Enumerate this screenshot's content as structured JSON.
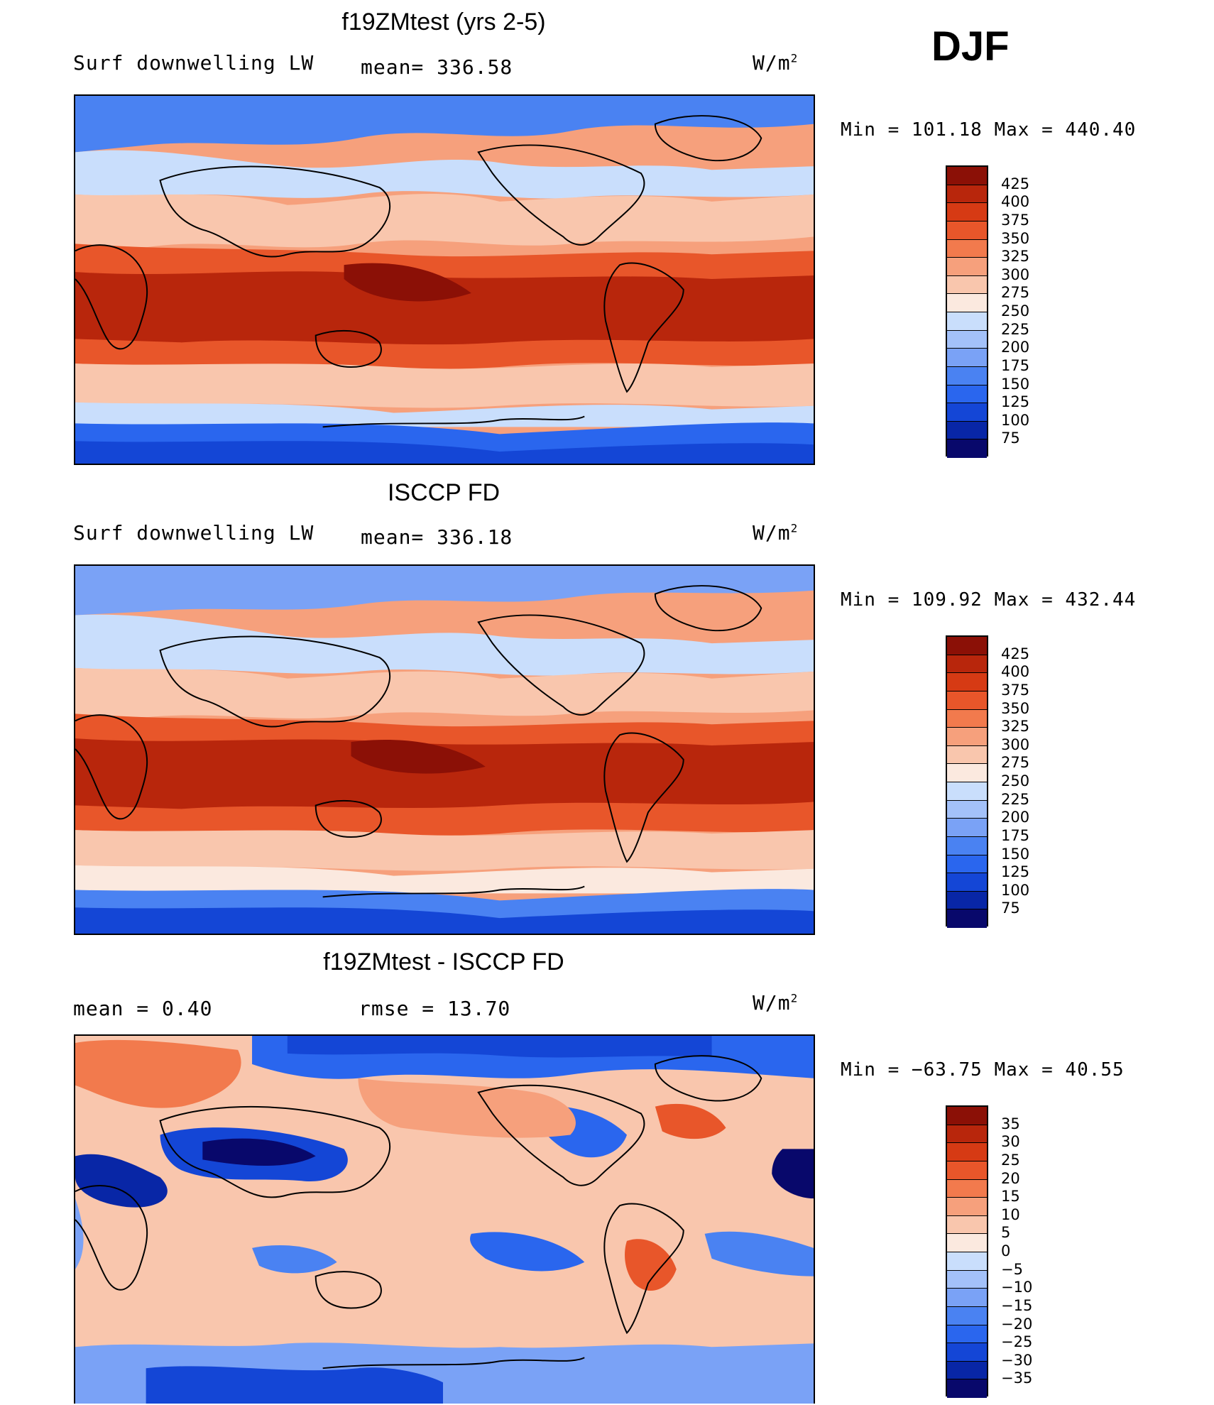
{
  "season": "DJF",
  "unit_text": "W/m",
  "unit_sup": "2",
  "colors": {
    "abs": [
      "#08086b",
      "#0826a6",
      "#1446d6",
      "#2a66ee",
      "#4a82f2",
      "#7aa2f6",
      "#a3c1f9",
      "#c9defc",
      "#fbe9df",
      "#f9c6ad",
      "#f6a07c",
      "#f27a4d",
      "#e8562a",
      "#d63a14",
      "#b8260c",
      "#8b1006"
    ],
    "diff": [
      "#08086b",
      "#0826a6",
      "#1446d6",
      "#2a66ee",
      "#4a82f2",
      "#7aa2f6",
      "#a3c1f9",
      "#c9defc",
      "#fbe9df",
      "#f9c6ad",
      "#f6a07c",
      "#f27a4d",
      "#e8562a",
      "#d63a14",
      "#b8260c",
      "#8b1006"
    ],
    "land_line": "#000000"
  },
  "panels": [
    {
      "title": "f19ZMtest (yrs 2-5)",
      "left_label": "Surf downwelling LW",
      "center_label": "mean= 336.58",
      "minmax": "Min = 101.18 Max = 440.40",
      "scale": "abs"
    },
    {
      "title": "ISCCP FD",
      "left_label": "Surf downwelling LW",
      "center_label": "mean= 336.18",
      "minmax": "Min = 109.92 Max = 432.44",
      "scale": "abs"
    },
    {
      "title": "f19ZMtest - ISCCP FD",
      "left_label": "mean =    0.40",
      "center_label": "rmse =   13.70",
      "minmax": "Min = −63.75 Max =   40.55",
      "scale": "diff"
    }
  ],
  "colorbar_abs_labels": [
    "425",
    "400",
    "375",
    "350",
    "325",
    "300",
    "275",
    "250",
    "225",
    "200",
    "175",
    "150",
    "125",
    "100",
    "75"
  ],
  "colorbar_diff_labels": [
    "35",
    "30",
    "25",
    "20",
    "15",
    "10",
    "5",
    "0",
    "−5",
    "−10",
    "−15",
    "−20",
    "−25",
    "−30",
    "−35"
  ]
}
